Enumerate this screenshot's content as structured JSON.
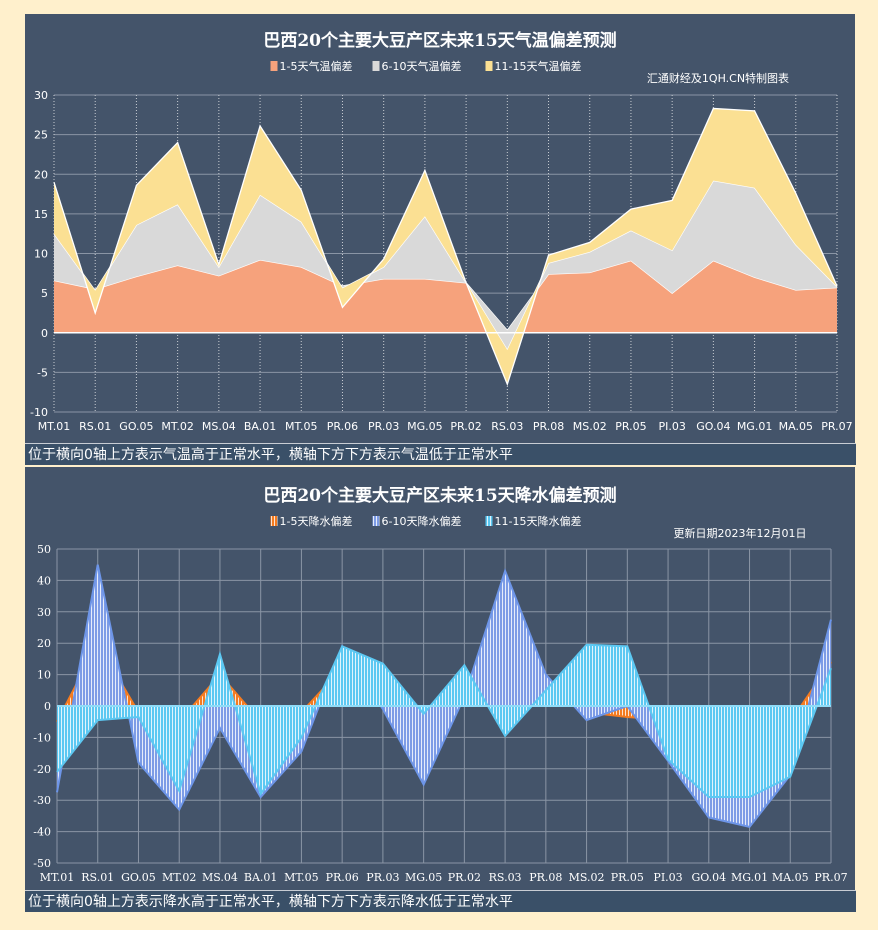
{
  "chart_data": [
    {
      "type": "area",
      "stacked": true,
      "title": "巴西20个主要大豆产区未来15天气温偏差预测",
      "annotation": "汇通财经及1QH.CN特制图表",
      "footnote": "位于横向0轴上方表示气温高于正常水平，横轴下方下方表示气温低于正常水平",
      "categories": [
        "MT.01",
        "RS.01",
        "GO.05",
        "MT.02",
        "MS.04",
        "BA.01",
        "MT.05",
        "PR.06",
        "PR.03",
        "MG.05",
        "PR.02",
        "RS.03",
        "PR.08",
        "MS.02",
        "PR.05",
        "PI.03",
        "GO.04",
        "MG.01",
        "MA.05",
        "PR.07"
      ],
      "ylim": [
        -10,
        30
      ],
      "yticks": [
        30,
        25,
        20,
        15,
        10,
        5,
        0,
        -5,
        -10
      ],
      "grid": true,
      "legend_position": "top",
      "series": [
        {
          "name": "1-5天气温偏差",
          "color": "#f6a27c",
          "values": [
            6.6,
            5.5,
            7.1,
            8.5,
            7.2,
            9.2,
            8.3,
            5.9,
            6.8,
            6.8,
            6.3,
            0.3,
            7.4,
            7.6,
            9.1,
            5.0,
            9.1,
            7.0,
            5.4,
            5.7
          ]
        },
        {
          "name": "6-10天气温偏差",
          "color": "#d9d9d9",
          "values": [
            5.9,
            -0.2,
            6.5,
            7.7,
            1.1,
            8.2,
            5.7,
            -0.3,
            1.5,
            7.9,
            0,
            -2.5,
            1.4,
            2.6,
            3.8,
            5.4,
            10.1,
            11.3,
            5.7,
            0.1
          ]
        },
        {
          "name": "11-15天气温偏差",
          "color": "#fbe093",
          "values": [
            6.5,
            -2.8,
            5.0,
            7.8,
            0.3,
            8.7,
            4.0,
            -2.4,
            1.0,
            5.8,
            0,
            -4.3,
            1.0,
            1.2,
            2.7,
            6.3,
            9.1,
            9.7,
            6.5,
            0.1
          ]
        }
      ]
    },
    {
      "type": "area",
      "stacked": false,
      "title": "巴西20个主要大豆产区未来15天降水偏差预测",
      "annotation": "更新日期2023年12月01日",
      "footnote": "位于横向0轴上方表示降水高于正常水平，横轴下方下方表示降水低于正常水平",
      "categories": [
        "MT.01",
        "RS.01",
        "GO.05",
        "MT.02",
        "MS.04",
        "BA.01",
        "MT.05",
        "PR.06",
        "PR.03",
        "MG.05",
        "PR.02",
        "RS.03",
        "PR.08",
        "MS.02",
        "PR.05",
        "PI.03",
        "GO.04",
        "MG.01",
        "MA.05",
        "PR.07"
      ],
      "ylim": [
        -50,
        50
      ],
      "yticks": [
        50,
        40,
        30,
        20,
        10,
        0,
        -10,
        -20,
        -30,
        -40,
        -50
      ],
      "grid": true,
      "legend_position": "top",
      "series": [
        {
          "name": "1-5天降水偏差",
          "color": "#f47b20",
          "values": [
            -5,
            20,
            -2,
            -5,
            10,
            -5,
            -2,
            12,
            2,
            -5,
            2,
            20,
            5,
            -2,
            -3.5,
            -4.5,
            -10,
            -10,
            -5,
            14
          ]
        },
        {
          "name": "6-10天降水偏差",
          "color": "#6d95e8",
          "values": [
            -27.5,
            45,
            -18,
            -33,
            -7,
            -29,
            -14.5,
            19,
            -1,
            -25,
            3,
            43,
            10,
            -4.5,
            0,
            -17.5,
            -35.5,
            -38.5,
            -22,
            27.5
          ]
        },
        {
          "name": "11-15天降水偏差",
          "color": "#5cc8f2",
          "values": [
            -21,
            -4.5,
            -3.5,
            -27,
            16.5,
            -28,
            -10,
            19,
            13.5,
            -2.5,
            13,
            -9.5,
            5,
            19.5,
            19,
            -17,
            -29,
            -29,
            -22.5,
            12
          ]
        }
      ]
    }
  ]
}
